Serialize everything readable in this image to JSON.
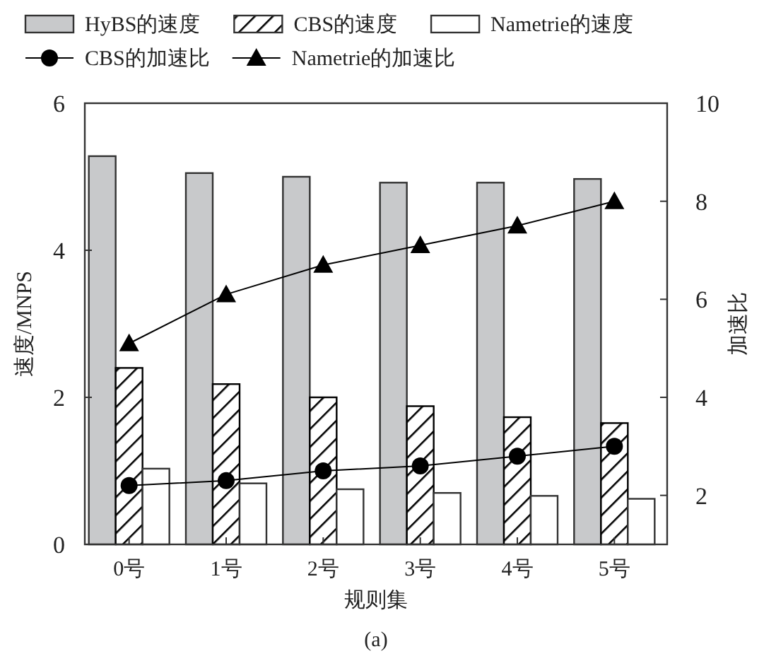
{
  "chart_data": {
    "type": "bar",
    "xlabel": "规则集",
    "ylabel": "速度/MNPS",
    "y2label": "加速比",
    "annotations": [
      "(a)"
    ],
    "categories": [
      "0号",
      "1号",
      "2号",
      "3号",
      "4号",
      "5号"
    ],
    "ylim": [
      0,
      6
    ],
    "yticks": [
      0,
      2,
      4,
      6
    ],
    "y2lim": [
      1,
      10
    ],
    "y2ticks": [
      2,
      4,
      6,
      8,
      10
    ],
    "legend": "top",
    "grid": false,
    "series": [
      {
        "name": "HyBS的速度",
        "color": "#c8c9cb",
        "values": [
          5.28,
          5.05,
          5.0,
          4.92,
          4.92,
          4.97
        ]
      },
      {
        "name": "CBS的速度",
        "color": "#000000",
        "values": [
          2.4,
          2.18,
          2.0,
          1.88,
          1.73,
          1.65
        ]
      },
      {
        "name": "Nametrie的速度",
        "color": "#ffffff",
        "values": [
          1.03,
          0.83,
          0.75,
          0.7,
          0.66,
          0.62
        ]
      },
      {
        "name": "CBS的加速比",
        "type": "line",
        "axis": "y2",
        "marker": "circle",
        "color": "#000000",
        "values": [
          2.2,
          2.3,
          2.5,
          2.6,
          2.8,
          3.0
        ]
      },
      {
        "name": "Nametrie的加速比",
        "type": "line",
        "axis": "y2",
        "marker": "triangle",
        "color": "#000000",
        "values": [
          5.1,
          6.1,
          6.7,
          7.1,
          7.5,
          8.0
        ]
      }
    ]
  }
}
